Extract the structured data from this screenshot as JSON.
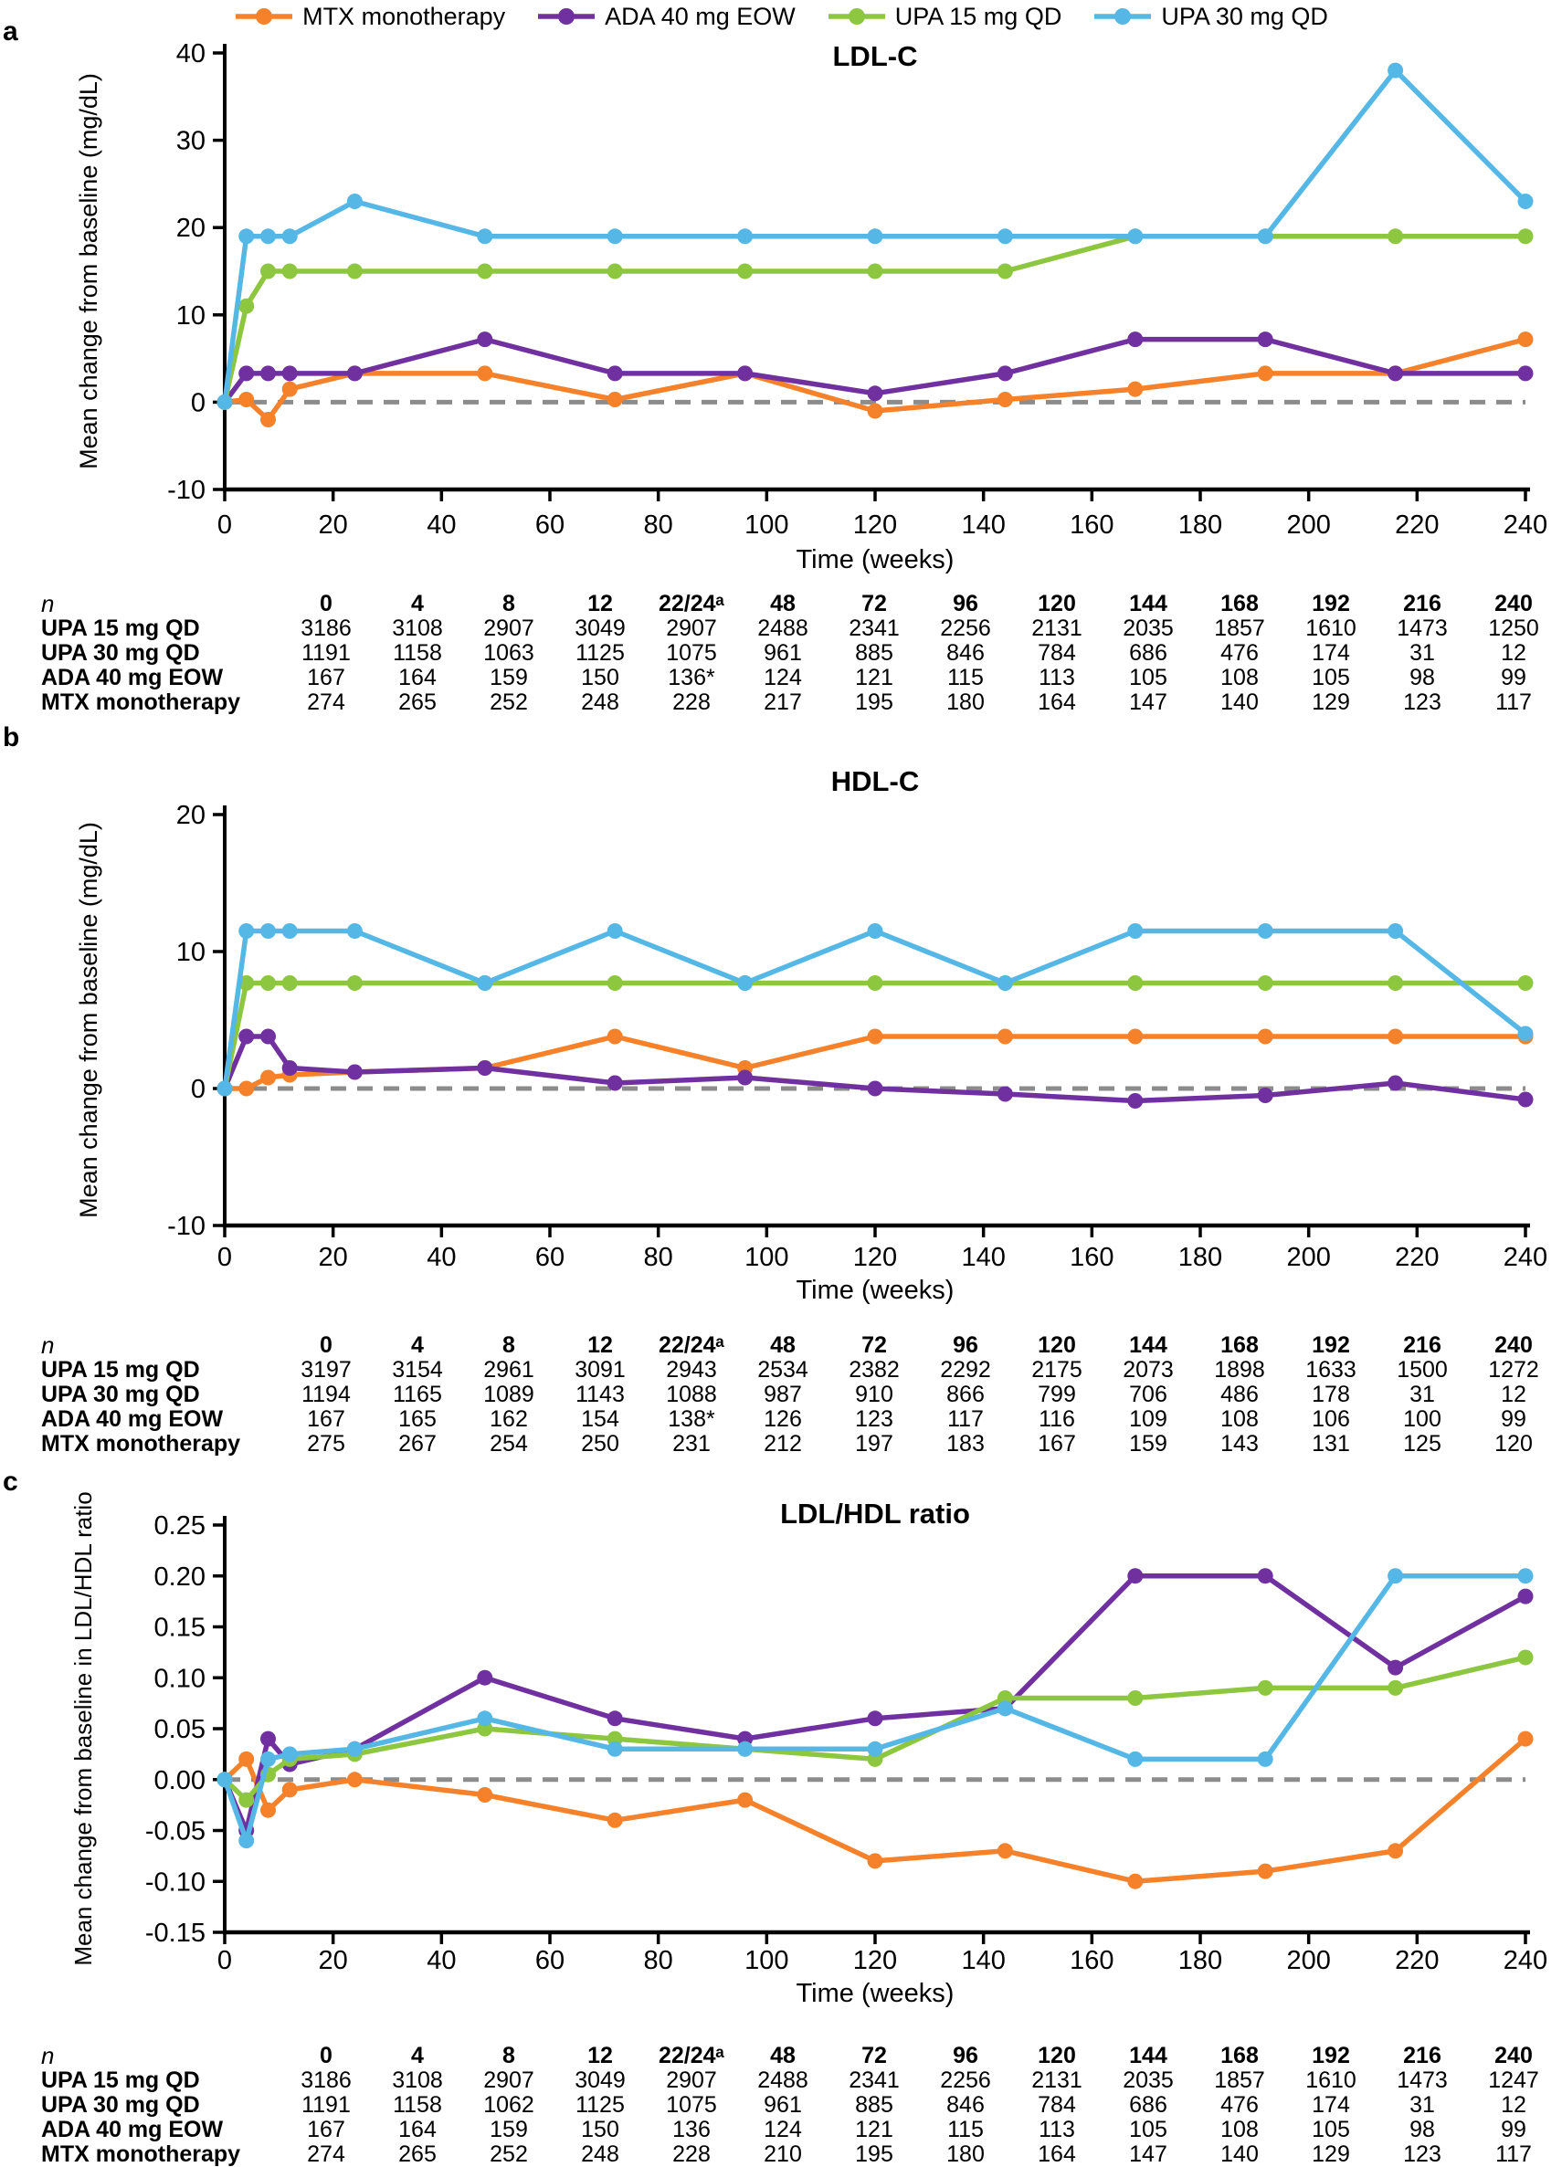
{
  "legend": {
    "items": [
      {
        "label": "MTX monotherapy",
        "color": "#F5822B"
      },
      {
        "label": "ADA 40 mg EOW",
        "color": "#7030A0"
      },
      {
        "label": "UPA 15 mg QD",
        "color": "#8DC63F"
      },
      {
        "label": "UPA 30 mg QD",
        "color": "#55B7E6"
      }
    ]
  },
  "colors": {
    "mtx": "#F5822B",
    "ada": "#7030A0",
    "upa15": "#8DC63F",
    "upa30": "#55B7E6",
    "zero_baseline": "#8C8C8C",
    "axis": "#000000"
  },
  "chart_data": [
    {
      "type": "line",
      "panel_label": "a",
      "title": "LDL-C",
      "ylabel": "Mean change from baseline (mg/dL)",
      "xlabel": "Time (weeks)",
      "xlim": [
        0,
        240
      ],
      "ylim": [
        -10,
        40
      ],
      "yticks": [
        40,
        30,
        20,
        10,
        0,
        -10
      ],
      "ytick_labels": [
        "40",
        "30",
        "20",
        "10",
        "0",
        "-10"
      ],
      "xticks": [
        0,
        20,
        40,
        60,
        80,
        100,
        120,
        140,
        160,
        180,
        200,
        220,
        240
      ],
      "grid": false,
      "zero_baseline_dashed": true,
      "legend_position": "top",
      "x_weeks": [
        0,
        4,
        8,
        12,
        24,
        48,
        72,
        96,
        120,
        144,
        168,
        192,
        216,
        240
      ],
      "series": [
        {
          "name": "MTX monotherapy",
          "color": "#F5822B",
          "values": [
            0,
            0.3,
            -2,
            1.5,
            3.3,
            3.3,
            0.3,
            3.3,
            -1,
            0.3,
            1.5,
            3.3,
            3.3,
            7.2
          ]
        },
        {
          "name": "ADA 40 mg EOW",
          "color": "#7030A0",
          "values": [
            0,
            3.3,
            3.3,
            3.3,
            3.3,
            7.2,
            3.3,
            3.3,
            1,
            3.3,
            7.2,
            7.2,
            3.3,
            3.3
          ]
        },
        {
          "name": "UPA 15 mg QD",
          "color": "#8DC63F",
          "values": [
            0,
            11,
            15,
            15,
            15,
            15,
            15,
            15,
            15,
            15,
            19,
            19,
            19,
            19
          ]
        },
        {
          "name": "UPA 30 mg QD",
          "color": "#55B7E6",
          "values": [
            0,
            19,
            19,
            19,
            23,
            19,
            19,
            19,
            19,
            19,
            19,
            19,
            38,
            23
          ]
        }
      ]
    },
    {
      "type": "line",
      "panel_label": "b",
      "title": "HDL-C",
      "ylabel": "Mean change from baseline (mg/dL)",
      "xlabel": "Time (weeks)",
      "xlim": [
        0,
        240
      ],
      "ylim": [
        -10,
        20
      ],
      "yticks": [
        20,
        10,
        0,
        -10
      ],
      "ytick_labels": [
        "20",
        "10",
        "0",
        "-10"
      ],
      "xticks": [
        0,
        20,
        40,
        60,
        80,
        100,
        120,
        140,
        160,
        180,
        200,
        220,
        240
      ],
      "grid": false,
      "zero_baseline_dashed": true,
      "legend_position": "top",
      "x_weeks": [
        0,
        4,
        8,
        12,
        24,
        48,
        72,
        96,
        120,
        144,
        168,
        192,
        216,
        240
      ],
      "series": [
        {
          "name": "MTX monotherapy",
          "color": "#F5822B",
          "values": [
            0,
            0,
            0.8,
            1,
            1.2,
            1.5,
            3.8,
            1.5,
            3.8,
            3.8,
            3.8,
            3.8,
            3.8,
            3.8
          ]
        },
        {
          "name": "ADA 40 mg EOW",
          "color": "#7030A0",
          "values": [
            0,
            3.8,
            3.8,
            1.5,
            1.2,
            1.5,
            0.4,
            0.8,
            0,
            -0.4,
            -0.9,
            -0.5,
            0.4,
            -0.8
          ]
        },
        {
          "name": "UPA 15 mg QD",
          "color": "#8DC63F",
          "values": [
            0,
            7.7,
            7.7,
            7.7,
            7.7,
            7.7,
            7.7,
            7.7,
            7.7,
            7.7,
            7.7,
            7.7,
            7.7,
            7.7
          ]
        },
        {
          "name": "UPA 30 mg QD",
          "color": "#55B7E6",
          "values": [
            0,
            11.5,
            11.5,
            11.5,
            11.5,
            7.7,
            11.5,
            7.7,
            11.5,
            7.7,
            11.5,
            11.5,
            11.5,
            4
          ]
        }
      ]
    },
    {
      "type": "line",
      "panel_label": "c",
      "title": "LDL/HDL ratio",
      "ylabel": "Mean change from baseline in LDL/HDL ratio",
      "xlabel": "Time (weeks)",
      "xlim": [
        0,
        240
      ],
      "ylim": [
        -0.15,
        0.25
      ],
      "yticks": [
        0.25,
        0.2,
        0.15,
        0.1,
        0.05,
        0,
        -0.05,
        -0.1,
        -0.15
      ],
      "ytick_labels": [
        "0.25",
        "0.20",
        "0.15",
        "0.10",
        "0.05",
        "0.00",
        "-0.05",
        "-0.10",
        "-0.15"
      ],
      "xticks": [
        0,
        20,
        40,
        60,
        80,
        100,
        120,
        140,
        160,
        180,
        200,
        220,
        240
      ],
      "grid": false,
      "zero_baseline_dashed": true,
      "legend_position": "top",
      "x_weeks": [
        0,
        4,
        8,
        12,
        24,
        48,
        72,
        96,
        120,
        144,
        168,
        192,
        216,
        240
      ],
      "series": [
        {
          "name": "MTX monotherapy",
          "color": "#F5822B",
          "values": [
            0,
            0.02,
            -0.03,
            -0.01,
            0,
            -0.015,
            -0.04,
            -0.02,
            -0.08,
            -0.07,
            -0.1,
            -0.09,
            -0.07,
            0.04
          ]
        },
        {
          "name": "ADA 40 mg EOW",
          "color": "#7030A0",
          "values": [
            0,
            -0.05,
            0.04,
            0.015,
            0.03,
            0.1,
            0.06,
            0.04,
            0.06,
            0.07,
            0.2,
            0.2,
            0.11,
            0.18
          ]
        },
        {
          "name": "UPA 15 mg QD",
          "color": "#8DC63F",
          "values": [
            0,
            -0.02,
            0.005,
            0.02,
            0.025,
            0.05,
            0.04,
            0.03,
            0.02,
            0.08,
            0.08,
            0.09,
            0.09,
            0.12
          ]
        },
        {
          "name": "UPA 30 mg QD",
          "color": "#55B7E6",
          "values": [
            0,
            -0.06,
            0.02,
            0.025,
            0.03,
            0.06,
            0.03,
            0.03,
            0.03,
            0.07,
            0.02,
            0.02,
            0.2,
            0.2
          ]
        }
      ]
    }
  ],
  "tables": [
    {
      "panel": "a",
      "row_header": "n",
      "header": [
        "0",
        "4",
        "8",
        "12",
        "22/24ᵃ",
        "48",
        "72",
        "96",
        "120",
        "144",
        "168",
        "192",
        "216",
        "240"
      ],
      "rows": [
        {
          "label": "UPA 15 mg QD",
          "values": [
            "3186",
            "3108",
            "2907",
            "3049",
            "2907",
            "2488",
            "2341",
            "2256",
            "2131",
            "2035",
            "1857",
            "1610",
            "1473",
            "1250"
          ]
        },
        {
          "label": "UPA 30 mg QD",
          "values": [
            "1191",
            "1158",
            "1063",
            "1125",
            "1075",
            "961",
            "885",
            "846",
            "784",
            "686",
            "476",
            "174",
            "31",
            "12"
          ]
        },
        {
          "label": "ADA 40 mg EOW",
          "values": [
            "167",
            "164",
            "159",
            "150",
            "136*",
            "124",
            "121",
            "115",
            "113",
            "105",
            "108",
            "105",
            "98",
            "99"
          ]
        },
        {
          "label": "MTX monotherapy",
          "values": [
            "274",
            "265",
            "252",
            "248",
            "228",
            "217",
            "195",
            "180",
            "164",
            "147",
            "140",
            "129",
            "123",
            "117"
          ]
        }
      ]
    },
    {
      "panel": "b",
      "row_header": "n",
      "header": [
        "0",
        "4",
        "8",
        "12",
        "22/24ᵃ",
        "48",
        "72",
        "96",
        "120",
        "144",
        "168",
        "192",
        "216",
        "240"
      ],
      "rows": [
        {
          "label": "UPA 15 mg QD",
          "values": [
            "3197",
            "3154",
            "2961",
            "3091",
            "2943",
            "2534",
            "2382",
            "2292",
            "2175",
            "2073",
            "1898",
            "1633",
            "1500",
            "1272"
          ]
        },
        {
          "label": "UPA 30 mg QD",
          "values": [
            "1194",
            "1165",
            "1089",
            "1143",
            "1088",
            "987",
            "910",
            "866",
            "799",
            "706",
            "486",
            "178",
            "31",
            "12"
          ]
        },
        {
          "label": "ADA 40 mg EOW",
          "values": [
            "167",
            "165",
            "162",
            "154",
            "138*",
            "126",
            "123",
            "117",
            "116",
            "109",
            "108",
            "106",
            "100",
            "99"
          ]
        },
        {
          "label": "MTX monotherapy",
          "values": [
            "275",
            "267",
            "254",
            "250",
            "231",
            "212",
            "197",
            "183",
            "167",
            "159",
            "143",
            "131",
            "125",
            "120"
          ]
        }
      ]
    },
    {
      "panel": "c",
      "row_header": "n",
      "header": [
        "0",
        "4",
        "8",
        "12",
        "22/24ᵃ",
        "48",
        "72",
        "96",
        "120",
        "144",
        "168",
        "192",
        "216",
        "240"
      ],
      "rows": [
        {
          "label": "UPA 15 mg QD",
          "values": [
            "3186",
            "3108",
            "2907",
            "3049",
            "2907",
            "2488",
            "2341",
            "2256",
            "2131",
            "2035",
            "1857",
            "1610",
            "1473",
            "1247"
          ]
        },
        {
          "label": "UPA 30 mg QD",
          "values": [
            "1191",
            "1158",
            "1062",
            "1125",
            "1075",
            "961",
            "885",
            "846",
            "784",
            "686",
            "476",
            "174",
            "31",
            "12"
          ]
        },
        {
          "label": "ADA 40 mg EOW",
          "values": [
            "167",
            "164",
            "159",
            "150",
            "136",
            "124",
            "121",
            "115",
            "113",
            "105",
            "108",
            "105",
            "98",
            "99"
          ]
        },
        {
          "label": "MTX monotherapy",
          "values": [
            "274",
            "265",
            "252",
            "248",
            "228",
            "210",
            "195",
            "180",
            "164",
            "147",
            "140",
            "129",
            "123",
            "117"
          ]
        }
      ]
    }
  ]
}
